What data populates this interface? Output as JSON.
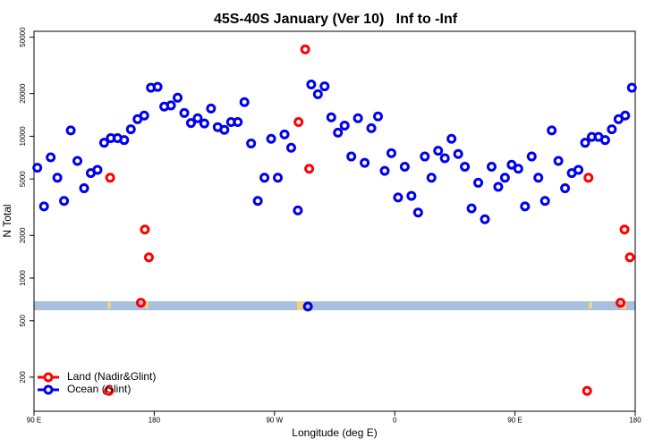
{
  "chart_data": {
    "type": "scatter",
    "title": "45S-40S January (Ver 10)   Inf to -Inf",
    "x_label": "Longitude (deg E)",
    "y_label": "N Total",
    "xlim": [
      90,
      540
    ],
    "xticks": [
      {
        "value": 90,
        "label": "90 E"
      },
      180,
      {
        "value": 270,
        "label": "90 W"
      },
      {
        "value": 360,
        "label": "0"
      },
      {
        "value": 450,
        "label": "90 E"
      },
      {
        "value": 540,
        "label": "180"
      }
    ],
    "ylim": [
      115,
      55000
    ],
    "yticks": [
      200,
      500,
      1000,
      2000,
      5000,
      10000,
      20000,
      50000
    ],
    "log_y": true,
    "legend": "bottomleft",
    "series": [
      {
        "name": "Land (Nadir&Glint)",
        "color": "#ff0000",
        "x": [
          147,
          170,
          173,
          176,
          288,
          293,
          296,
          146,
          505,
          504,
          529,
          532,
          536
        ],
        "values": [
          5100,
          670,
          2200,
          1400,
          12600,
          41000,
          5900,
          160,
          5100,
          160,
          670,
          2200,
          1400
        ]
      },
      {
        "name": "Ocean (Glint)",
        "color": "#0000ee",
        "x": [
          92.5,
          97.5,
          102.5,
          107.5,
          112.5,
          117.5,
          122.5,
          127.5,
          132.5,
          137.5,
          142.5,
          147.5,
          152.5,
          157.5,
          162.5,
          167.5,
          172.5,
          177.5,
          182.5,
          187.5,
          192.5,
          197.5,
          202.5,
          207.5,
          212.5,
          217.5,
          222.5,
          227.5,
          232.5,
          237.5,
          242.5,
          247.5,
          252.5,
          257.5,
          262.5,
          267.5,
          272.5,
          277.5,
          282.5,
          287.5,
          295,
          297.5,
          302.5,
          307.5,
          312.5,
          317.5,
          322.5,
          327.5,
          332.5,
          337.5,
          342.5,
          347.5,
          352.5,
          357.5,
          362.5,
          367.5,
          372.5,
          377.5,
          382.5,
          387.5,
          392.5,
          397.5,
          402.5,
          407.5,
          412.5,
          417.5,
          422.5,
          427.5,
          432.5,
          437.5,
          442.5,
          447.5,
          452.5,
          457.5,
          462.5,
          467.5,
          472.5,
          477.5,
          482.5,
          487.5,
          492.5,
          497.5,
          502.5,
          507.5,
          512.5,
          517.5,
          522.5,
          527.5,
          532.5,
          537.5
        ],
        "values": [
          6000,
          3200,
          7100,
          5100,
          3500,
          11000,
          6700,
          4300,
          5500,
          5800,
          9000,
          9700,
          9700,
          9400,
          11200,
          13200,
          14000,
          22000,
          22300,
          16200,
          16500,
          18700,
          14600,
          12400,
          13400,
          12300,
          15700,
          11600,
          11100,
          12600,
          12600,
          17400,
          8900,
          3500,
          5100,
          9600,
          5100,
          10300,
          8300,
          3000,
          630,
          23200,
          19800,
          22500,
          13600,
          10600,
          11900,
          7200,
          13400,
          6500,
          11400,
          13800,
          5700,
          7600,
          3700,
          6100,
          3800,
          2900,
          7200,
          5100,
          7900,
          7000,
          9600,
          7500,
          6100,
          3100,
          4700,
          2600,
          6100,
          4400,
          5100,
          6300,
          5900,
          3200,
          7200,
          5100,
          3500,
          11000,
          6700,
          4300,
          5500,
          5800,
          9000,
          9900,
          9900,
          9400,
          11200,
          13200,
          14000,
          22000
        ]
      }
    ]
  }
}
